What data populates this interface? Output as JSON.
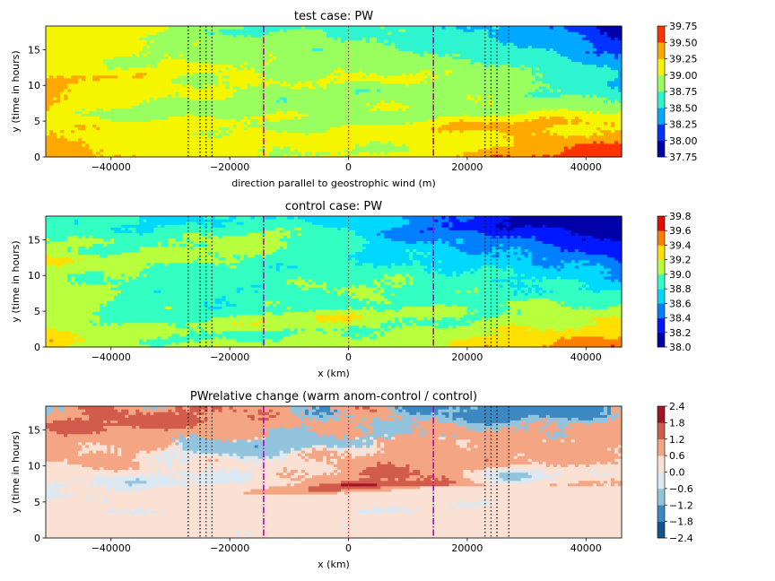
{
  "figure": {
    "background": "#ffffff"
  },
  "chart_data": [
    {
      "type": "heatmap",
      "title": "test case: PW",
      "xlabel": "direction parallel to geostrophic wind (m)",
      "ylabel": "y (time in hours)",
      "xlim": [
        -51000,
        46000
      ],
      "ylim": [
        0,
        18.3
      ],
      "xticks": [
        -40000,
        -20000,
        0,
        20000,
        40000
      ],
      "xtick_labels": [
        "−40000",
        "−20000",
        "0",
        "20000",
        "40000"
      ],
      "yticks": [
        0,
        5,
        10,
        15
      ],
      "ytick_labels": [
        "0",
        "5",
        "10",
        "15"
      ],
      "colormap": "jet",
      "colorbar_levels": [
        37.75,
        38.0,
        38.25,
        38.5,
        38.75,
        39.0,
        39.25,
        39.5,
        39.75
      ],
      "colorbar_labels": [
        "37.75",
        "38.00",
        "38.25",
        "38.50",
        "38.75",
        "39.00",
        "39.25",
        "39.50",
        "39.75"
      ],
      "colorbar_colors": [
        "#0000a8",
        "#0033ff",
        "#00a8ff",
        "#2ef5cf",
        "#99ff5e",
        "#f5f500",
        "#ffa800",
        "#ff3300"
      ],
      "field_summary": {
        "base": 38.95,
        "left_edge_bias": 0.35,
        "right_edge_bias": -0.45,
        "top_right_low": -0.5,
        "bottom_right_high": 0.5
      },
      "vlines": [
        {
          "x": -27000,
          "style": "dotted",
          "color": "#000000"
        },
        {
          "x": -25000,
          "style": "dotted",
          "color": "#000000"
        },
        {
          "x": -24000,
          "style": "dotted",
          "color": "#000000"
        },
        {
          "x": -23000,
          "style": "dotted",
          "color": "#000000"
        },
        {
          "x": -14300,
          "style": "dashdot",
          "color": "#c000c0"
        },
        {
          "x": 0,
          "style": "dotted",
          "color": "#e02020"
        },
        {
          "x": 14300,
          "style": "dashdot",
          "color": "#c000c0"
        },
        {
          "x": 23000,
          "style": "dotted",
          "color": "#000000"
        },
        {
          "x": 24000,
          "style": "dotted",
          "color": "#000000"
        },
        {
          "x": 25000,
          "style": "dotted",
          "color": "#000000"
        },
        {
          "x": 27000,
          "style": "dotted",
          "color": "#000000"
        }
      ]
    },
    {
      "type": "heatmap",
      "title": "control case: PW",
      "xlabel": "x (km)",
      "ylabel": "y (time in hours)",
      "xlim": [
        -51000,
        46000
      ],
      "ylim": [
        0,
        18.3
      ],
      "xticks": [
        -40000,
        -20000,
        0,
        20000,
        40000
      ],
      "xtick_labels": [
        "−40000",
        "−20000",
        "0",
        "20000",
        "40000"
      ],
      "yticks": [
        0,
        5,
        10,
        15
      ],
      "ytick_labels": [
        "0",
        "5",
        "10",
        "15"
      ],
      "colormap": "jet",
      "colorbar_levels": [
        38.0,
        38.2,
        38.4,
        38.6,
        38.8,
        39.0,
        39.2,
        39.4,
        39.6,
        39.8
      ],
      "colorbar_labels": [
        "38.0",
        "38.2",
        "38.4",
        "38.6",
        "38.8",
        "39.0",
        "39.2",
        "39.4",
        "39.6",
        "39.8"
      ],
      "colorbar_colors": [
        "#0000a8",
        "#0018ff",
        "#0080ff",
        "#00d8ff",
        "#33ffc2",
        "#b8ff3e",
        "#ffe000",
        "#ff8000",
        "#e01000"
      ],
      "field_summary": {
        "base": 38.95,
        "left_edge_bias": 0.25,
        "right_edge_bias": -0.3,
        "top_right_low": -0.7,
        "bottom_right_high": 0.45
      },
      "vlines": [
        {
          "x": -27000,
          "style": "dotted",
          "color": "#000000"
        },
        {
          "x": -25000,
          "style": "dotted",
          "color": "#000000"
        },
        {
          "x": -24000,
          "style": "dotted",
          "color": "#000000"
        },
        {
          "x": -23000,
          "style": "dotted",
          "color": "#000000"
        },
        {
          "x": -14300,
          "style": "dashdot",
          "color": "#c000c0"
        },
        {
          "x": 0,
          "style": "dotted",
          "color": "#e02020"
        },
        {
          "x": 14300,
          "style": "dashdot",
          "color": "#c000c0"
        },
        {
          "x": 23000,
          "style": "dotted",
          "color": "#000000"
        },
        {
          "x": 24000,
          "style": "dotted",
          "color": "#000000"
        },
        {
          "x": 25000,
          "style": "dotted",
          "color": "#000000"
        },
        {
          "x": 27000,
          "style": "dotted",
          "color": "#000000"
        }
      ]
    },
    {
      "type": "heatmap",
      "title": "PWrelative change (warm anom-control / control)",
      "xlabel": "x (km)",
      "ylabel": "y (time in hours)",
      "xlim": [
        -51000,
        46000
      ],
      "ylim": [
        0,
        18.3
      ],
      "xticks": [
        -40000,
        -20000,
        0,
        20000,
        40000
      ],
      "xtick_labels": [
        "−40000",
        "−20000",
        "0",
        "20000",
        "40000"
      ],
      "yticks": [
        0,
        5,
        10,
        15
      ],
      "ytick_labels": [
        "0",
        "5",
        "10",
        "15"
      ],
      "colormap": "RdBu_r",
      "colorbar_levels": [
        -2.4,
        -1.8,
        -1.2,
        -0.6,
        0.0,
        0.6,
        1.2,
        1.8,
        2.4
      ],
      "colorbar_labels": [
        "−2.4",
        "−1.8",
        "−1.2",
        "−0.6",
        "0.0",
        "0.6",
        "1.2",
        "1.8",
        "2.4"
      ],
      "colorbar_colors": [
        "#105490",
        "#3c88c0",
        "#92c4de",
        "#dce9f2",
        "#fbe1d4",
        "#f4a684",
        "#d25c4c",
        "#a2132a"
      ],
      "field_summary": {
        "base": 0.1,
        "lower_half": "mostly 0.0 to 0.6",
        "upper_half": "mix of 0.6 to 1.8 with blue streaks"
      },
      "vlines": [
        {
          "x": -27000,
          "style": "dotted",
          "color": "#000000"
        },
        {
          "x": -25000,
          "style": "dotted",
          "color": "#000000"
        },
        {
          "x": -24000,
          "style": "dotted",
          "color": "#000000"
        },
        {
          "x": -23000,
          "style": "dotted",
          "color": "#000000"
        },
        {
          "x": -14300,
          "style": "dashdot",
          "color": "#c000c0"
        },
        {
          "x": 0,
          "style": "dotted",
          "color": "#e02020"
        },
        {
          "x": 14300,
          "style": "dashdot",
          "color": "#c000c0"
        },
        {
          "x": 23000,
          "style": "dotted",
          "color": "#000000"
        },
        {
          "x": 24000,
          "style": "dotted",
          "color": "#000000"
        },
        {
          "x": 25000,
          "style": "dotted",
          "color": "#000000"
        },
        {
          "x": 27000,
          "style": "dotted",
          "color": "#000000"
        }
      ]
    }
  ]
}
